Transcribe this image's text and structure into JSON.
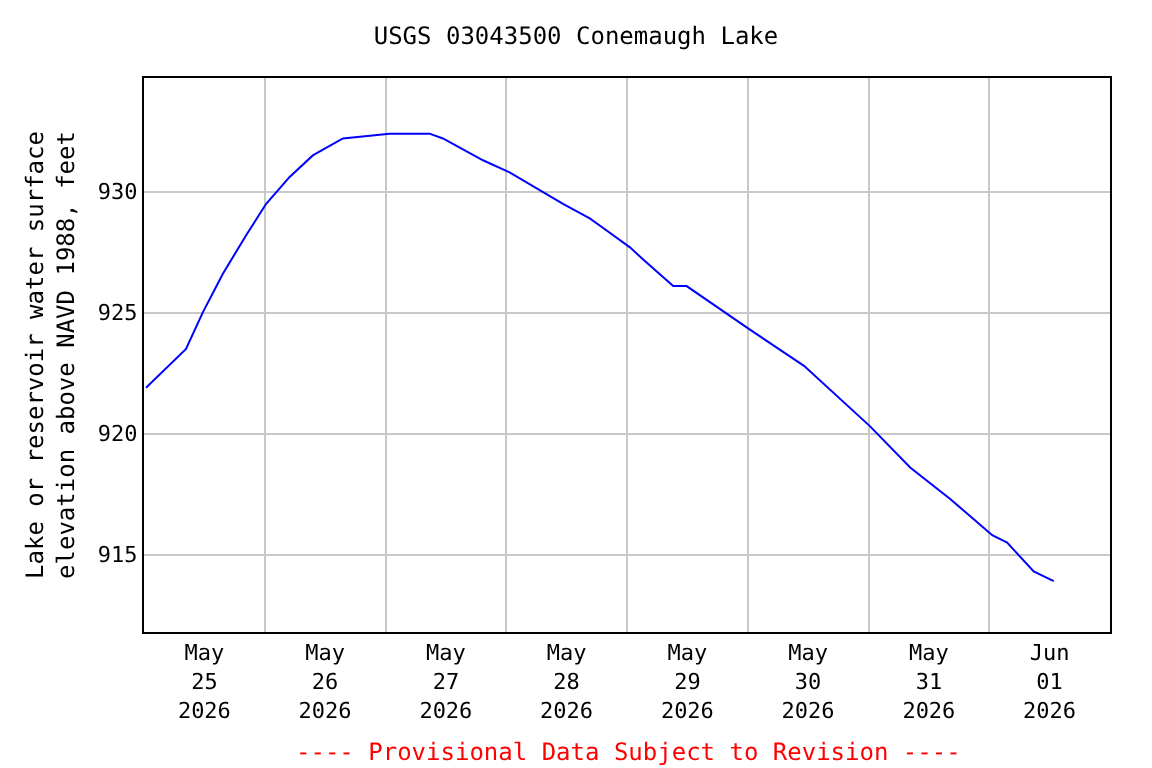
{
  "chart_data": {
    "type": "line",
    "title": "USGS 03043500 Conemaugh Lake",
    "ylabel": "Lake or reservoir water surface\nelevation above NAVD 1988, feet",
    "annotations": [
      "---- Provisional Data Subject to Revision ----"
    ],
    "x": [
      "2026-05-25T00:24",
      "2026-05-25T08:21",
      "2026-05-25T11:40",
      "2026-05-25T15:39",
      "2026-05-25T20:18",
      "2026-05-26T00:17",
      "2026-05-26T04:54",
      "2026-05-26T09:33",
      "2026-05-26T15:32",
      "2026-05-27T00:48",
      "2026-05-27T08:45",
      "2026-05-27T11:25",
      "2026-05-27T19:23",
      "2026-05-28T00:40",
      "2026-05-28T11:17",
      "2026-05-28T16:36",
      "2026-05-28T19:16",
      "2026-05-29T00:35",
      "2026-05-29T03:13",
      "2026-05-29T09:11",
      "2026-05-29T11:51",
      "2026-05-30T00:26",
      "2026-05-30T11:11",
      "2026-05-31T00:19",
      "2026-05-31T08:17",
      "2026-05-31T16:14",
      "2026-06-01T00:36",
      "2026-06-01T03:33",
      "2026-06-01T08:50",
      "2026-06-01T12:49"
    ],
    "series": [
      {
        "color": "#0000ff",
        "values": [
          921.9,
          923.5,
          925.0,
          926.6,
          928.2,
          929.5,
          930.6,
          931.5,
          932.2,
          932.4,
          932.4,
          932.2,
          931.3,
          930.8,
          929.5,
          928.9,
          928.5,
          927.7,
          927.2,
          926.1,
          926.1,
          924.3,
          922.8,
          920.3,
          918.6,
          917.3,
          915.8,
          915.5,
          914.3,
          913.9
        ]
      }
    ],
    "xlim": [
      "2026-05-25T00:00",
      "2026-06-02T00:00"
    ],
    "xticks": [
      {
        "value": "2026-05-25T12:00",
        "label": "May\n25\n2026"
      },
      {
        "value": "2026-05-26T12:00",
        "label": "May\n26\n2026"
      },
      {
        "value": "2026-05-27T12:00",
        "label": "May\n27\n2026"
      },
      {
        "value": "2026-05-28T12:00",
        "label": "May\n28\n2026"
      },
      {
        "value": "2026-05-29T12:00",
        "label": "May\n29\n2026"
      },
      {
        "value": "2026-05-30T12:00",
        "label": "May\n30\n2026"
      },
      {
        "value": "2026-05-31T12:00",
        "label": "May\n31\n2026"
      },
      {
        "value": "2026-06-01T12:00",
        "label": "Jun\n01\n2026"
      },
      {
        "value": "2026-05-26T00:00",
        "label": null
      },
      {
        "value": "2026-05-27T00:00",
        "label": null
      },
      {
        "value": "2026-05-28T00:00",
        "label": null
      },
      {
        "value": "2026-05-29T00:00",
        "label": null
      },
      {
        "value": "2026-05-30T00:00",
        "label": null
      },
      {
        "value": "2026-05-31T00:00",
        "label": null
      },
      {
        "value": "2026-06-01T00:00",
        "label": null
      }
    ],
    "ylim": [
      911.8,
      934.7
    ],
    "yticks": [
      915,
      920,
      925,
      930
    ],
    "grid": true,
    "legend": false,
    "marker": "none",
    "line_style": "solid"
  }
}
